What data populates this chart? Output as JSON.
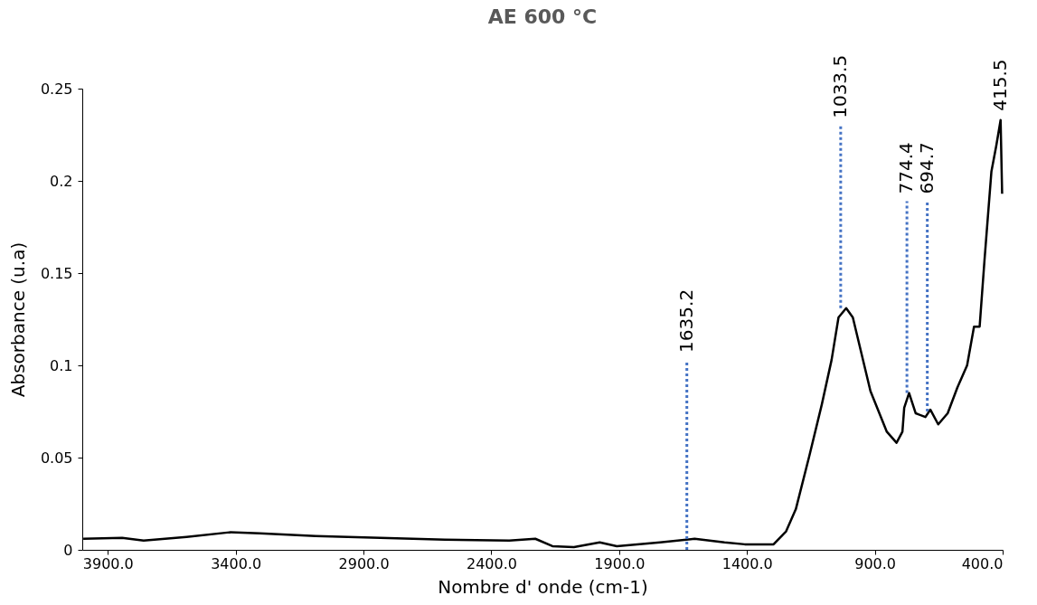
{
  "chart_data": {
    "type": "line",
    "title": "AE 600 °C",
    "xlabel": "Nombre d' onde (cm-1)",
    "ylabel": "Absorbance (u.a)",
    "xlim": [
      4000,
      400
    ],
    "xticks": [
      {
        "value": 3900,
        "label": "3900.0"
      },
      {
        "value": 3400,
        "label": "3400.0"
      },
      {
        "value": 2900,
        "label": "2900.0"
      },
      {
        "value": 2400,
        "label": "2400.0"
      },
      {
        "value": 1900,
        "label": "1900.0"
      },
      {
        "value": 1400,
        "label": "1400.0"
      },
      {
        "value": 900,
        "label": "900.0"
      },
      {
        "value": 400,
        "label": "400.0"
      }
    ],
    "ylim": [
      0,
      0.25
    ],
    "yticks": [
      0,
      0.05,
      0.1,
      0.15,
      0.2,
      0.25
    ],
    "grid": false,
    "legend": false,
    "marker": "none",
    "series": [
      {
        "color": "#000000",
        "line_style": "solid",
        "x": [
          3996,
          3844,
          3760,
          3592,
          3424,
          3306,
          3087,
          2834,
          2582,
          2330,
          2228,
          2161,
          2077,
          1976,
          1909,
          1740,
          1605,
          1488,
          1409,
          1296,
          1247,
          1209,
          1156,
          1107,
          1069,
          1042,
          1012,
          986,
          917,
          853,
          815,
          792,
          785,
          766,
          740,
          702,
          683,
          652,
          615,
          577,
          539,
          512,
          490,
          471,
          444,
          425,
          408,
          402
        ],
        "values": [
          0.006,
          0.0065,
          0.005,
          0.007,
          0.0095,
          0.009,
          0.0075,
          0.0065,
          0.0055,
          0.005,
          0.006,
          0.002,
          0.0015,
          0.004,
          0.002,
          0.004,
          0.006,
          0.004,
          0.003,
          0.003,
          0.01,
          0.022,
          0.051,
          0.079,
          0.103,
          0.126,
          0.131,
          0.126,
          0.086,
          0.064,
          0.058,
          0.064,
          0.077,
          0.085,
          0.074,
          0.072,
          0.076,
          0.068,
          0.074,
          0.088,
          0.1,
          0.121,
          0.121,
          0.157,
          0.205,
          0.219,
          0.233,
          0.193
        ]
      },
      {
        "name": "1635.2",
        "color": "#4472c4",
        "line_style": "dotted",
        "x": [
          1635.2,
          1635.2
        ],
        "values": [
          0,
          0.103
        ]
      },
      {
        "name": "1033.5",
        "color": "#4472c4",
        "line_style": "dotted",
        "x": [
          1033.5,
          1033.5
        ],
        "values": [
          0.131,
          0.23
        ]
      },
      {
        "name": "774.4",
        "color": "#4472c4",
        "line_style": "dotted",
        "x": [
          774.4,
          774.4
        ],
        "values": [
          0.085,
          0.189
        ]
      },
      {
        "name": "694.7",
        "color": "#4472c4",
        "line_style": "dotted",
        "x": [
          694.7,
          694.7
        ],
        "values": [
          0.075,
          0.189
        ]
      }
    ],
    "annotations": [
      "415.5"
    ]
  }
}
